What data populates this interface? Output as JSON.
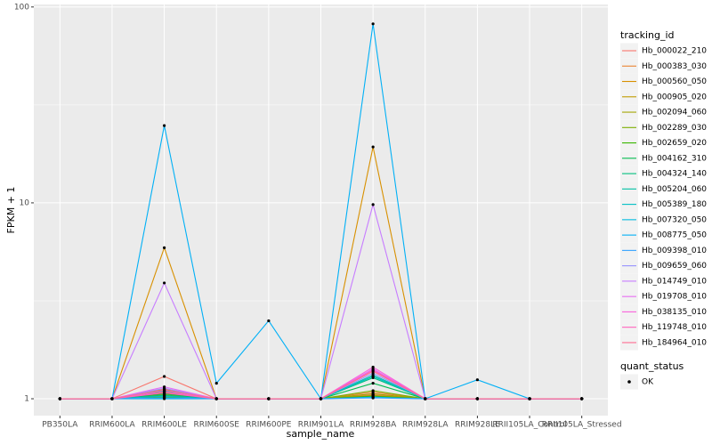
{
  "chart_data": {
    "type": "line",
    "log_scale": true,
    "grid": true,
    "x_label": "sample_name",
    "y_label": "FPKM + 1",
    "legend_title": "tracking_id",
    "point_legend_title": "quant_status",
    "point_label": "OK",
    "point_color": "#000000",
    "categories": [
      "PB350LA",
      "RRIM600LA",
      "RRIM600LE",
      "RRIM600SE",
      "RRIM600PE",
      "RRIM901LA",
      "RRIM928BA",
      "RRIM928LA",
      "RRIM928LE",
      "RRII105LA_Control",
      "RRII105LA_Stressed"
    ],
    "ylim": [
      0.82,
      103
    ],
    "yticks": [
      1,
      10,
      100
    ],
    "series": [
      {
        "name": "Hb_000022_210",
        "color": "#F8766D",
        "values": [
          1,
          1,
          1.3,
          1,
          1,
          1,
          1.05,
          1,
          1,
          1,
          1
        ]
      },
      {
        "name": "Hb_000383_030",
        "color": "#EA8331",
        "values": [
          1,
          1,
          1.12,
          1,
          1,
          1,
          1.08,
          1,
          1,
          1,
          1
        ]
      },
      {
        "name": "Hb_000560_050",
        "color": "#D89000",
        "values": [
          1,
          1,
          5.9,
          1,
          1,
          1,
          19.3,
          1,
          1,
          1,
          1
        ]
      },
      {
        "name": "Hb_000905_020",
        "color": "#C09B00",
        "values": [
          1,
          1,
          1.1,
          1,
          1,
          1,
          1.04,
          1,
          1,
          1,
          1
        ]
      },
      {
        "name": "Hb_002094_060",
        "color": "#A3A500",
        "values": [
          1,
          1,
          1.08,
          1,
          1,
          1,
          1.06,
          1,
          1,
          1,
          1
        ]
      },
      {
        "name": "Hb_002289_030",
        "color": "#7CAE00",
        "values": [
          1,
          1,
          1.05,
          1,
          1,
          1,
          1.1,
          1,
          1,
          1,
          1
        ]
      },
      {
        "name": "Hb_002659_020",
        "color": "#39B600",
        "values": [
          1,
          1,
          1.02,
          1,
          1,
          1,
          1.03,
          1,
          1,
          1,
          1
        ]
      },
      {
        "name": "Hb_004162_310",
        "color": "#00BB4E",
        "values": [
          1,
          1,
          1.06,
          1,
          1,
          1,
          1.2,
          1,
          1,
          1,
          1
        ]
      },
      {
        "name": "Hb_004324_140",
        "color": "#00BF7D",
        "values": [
          1,
          1,
          1.04,
          1,
          1,
          1,
          1.28,
          1,
          1,
          1,
          1
        ]
      },
      {
        "name": "Hb_005204_060",
        "color": "#00C1A3",
        "values": [
          1,
          1,
          1.1,
          1,
          1,
          1,
          1.32,
          1,
          1,
          1,
          1
        ]
      },
      {
        "name": "Hb_005389_180",
        "color": "#00BFC4",
        "values": [
          1,
          1,
          1.03,
          1,
          1,
          1,
          1.3,
          1,
          1,
          1,
          1
        ]
      },
      {
        "name": "Hb_007320_050",
        "color": "#00BAE0",
        "values": [
          1,
          1,
          1.0,
          1,
          1,
          1,
          1.02,
          1,
          1,
          1,
          1
        ]
      },
      {
        "name": "Hb_008775_050",
        "color": "#00B0F6",
        "values": [
          1,
          1,
          24.8,
          1.2,
          2.5,
          1,
          82,
          1,
          1.25,
          1,
          1
        ]
      },
      {
        "name": "Hb_009398_010",
        "color": "#35A2FF",
        "values": [
          1,
          1,
          1.01,
          1,
          1,
          1,
          1.01,
          1,
          1,
          1,
          1
        ]
      },
      {
        "name": "Hb_009659_060",
        "color": "#9590FF",
        "values": [
          1,
          1,
          1.13,
          1,
          1,
          1,
          1.35,
          1,
          1,
          1,
          1
        ]
      },
      {
        "name": "Hb_014749_010",
        "color": "#C77CFF",
        "values": [
          1,
          1,
          3.9,
          1,
          1,
          1,
          9.8,
          1,
          1,
          1,
          1
        ]
      },
      {
        "name": "Hb_019708_010",
        "color": "#E76BF3",
        "values": [
          1,
          1,
          1.15,
          1,
          1,
          1,
          1.42,
          1,
          1,
          1,
          1
        ]
      },
      {
        "name": "Hb_038135_010",
        "color": "#FA62DB",
        "values": [
          1,
          1,
          1.09,
          1,
          1,
          1,
          1.45,
          1,
          1,
          1,
          1
        ]
      },
      {
        "name": "Hb_119748_010",
        "color": "#FF62BC",
        "values": [
          1,
          1,
          1.07,
          1,
          1,
          1,
          1.4,
          1,
          1,
          1,
          1
        ]
      },
      {
        "name": "Hb_184964_010",
        "color": "#FF6C91",
        "values": [
          1,
          1,
          1.11,
          1,
          1,
          1,
          1.38,
          1,
          1,
          1,
          1
        ]
      }
    ]
  }
}
